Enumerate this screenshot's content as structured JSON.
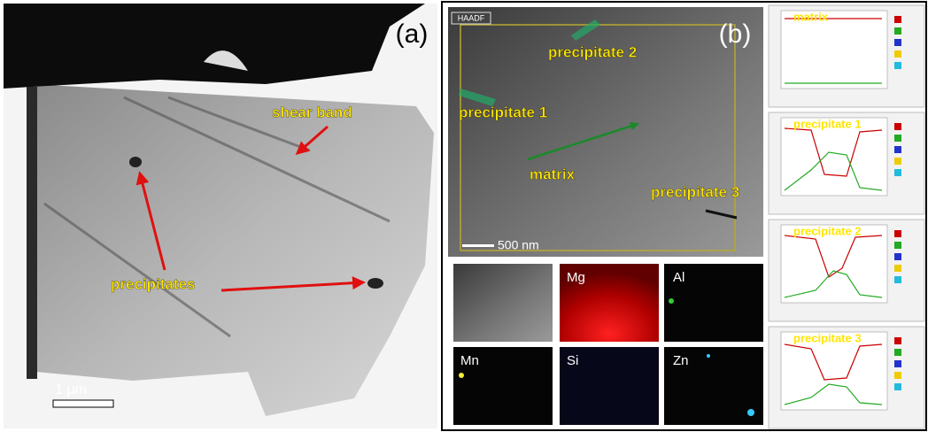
{
  "panel_a": {
    "label": "(a)",
    "annotations": [
      "shear band",
      "precipitates"
    ],
    "scale_bar": "1 μm"
  },
  "panel_b": {
    "label": "(b)",
    "image_tag": "HAADF",
    "annotations": [
      "precipitate 2",
      "precipitate 1",
      "matrix",
      "precipitate 3"
    ],
    "scale_bar": "500 nm",
    "maps": [
      "Mg",
      "Al",
      "Mn",
      "Si",
      "Zn"
    ],
    "profiles": [
      "matrix",
      "precipitate 1",
      "precipitate 2",
      "precipitate 3"
    ]
  }
}
